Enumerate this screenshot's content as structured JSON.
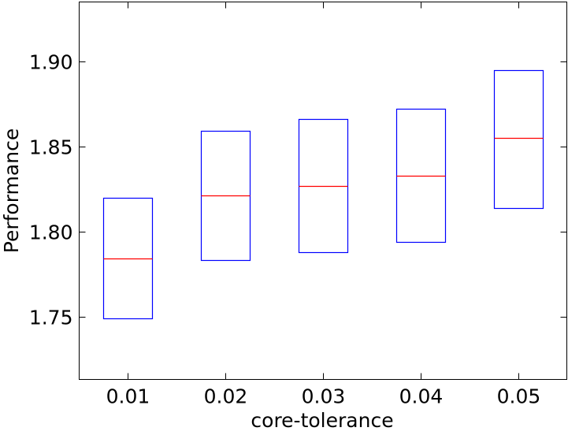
{
  "chart_data": {
    "type": "box",
    "title": "",
    "xlabel": "core-tolerance",
    "ylabel": "Performance",
    "categories": [
      "0.01",
      "0.02",
      "0.03",
      "0.04",
      "0.05"
    ],
    "boxes": [
      {
        "category": "0.01",
        "q1": 1.749,
        "median": 1.784,
        "q3": 1.82
      },
      {
        "category": "0.02",
        "q1": 1.783,
        "median": 1.821,
        "q3": 1.859
      },
      {
        "category": "0.03",
        "q1": 1.788,
        "median": 1.827,
        "q3": 1.866
      },
      {
        "category": "0.04",
        "q1": 1.794,
        "median": 1.833,
        "q3": 1.872
      },
      {
        "category": "0.05",
        "q1": 1.814,
        "median": 1.855,
        "q3": 1.895
      }
    ],
    "ylim": [
      1.713,
      1.935
    ],
    "yticks": [
      1.75,
      1.8,
      1.85,
      1.9
    ],
    "ytick_labels": [
      "1.75",
      "1.80",
      "1.85",
      "1.90"
    ],
    "grid": false,
    "colors": {
      "box": "#0000ff",
      "median": "#ff0000",
      "axes": "#000000"
    }
  }
}
